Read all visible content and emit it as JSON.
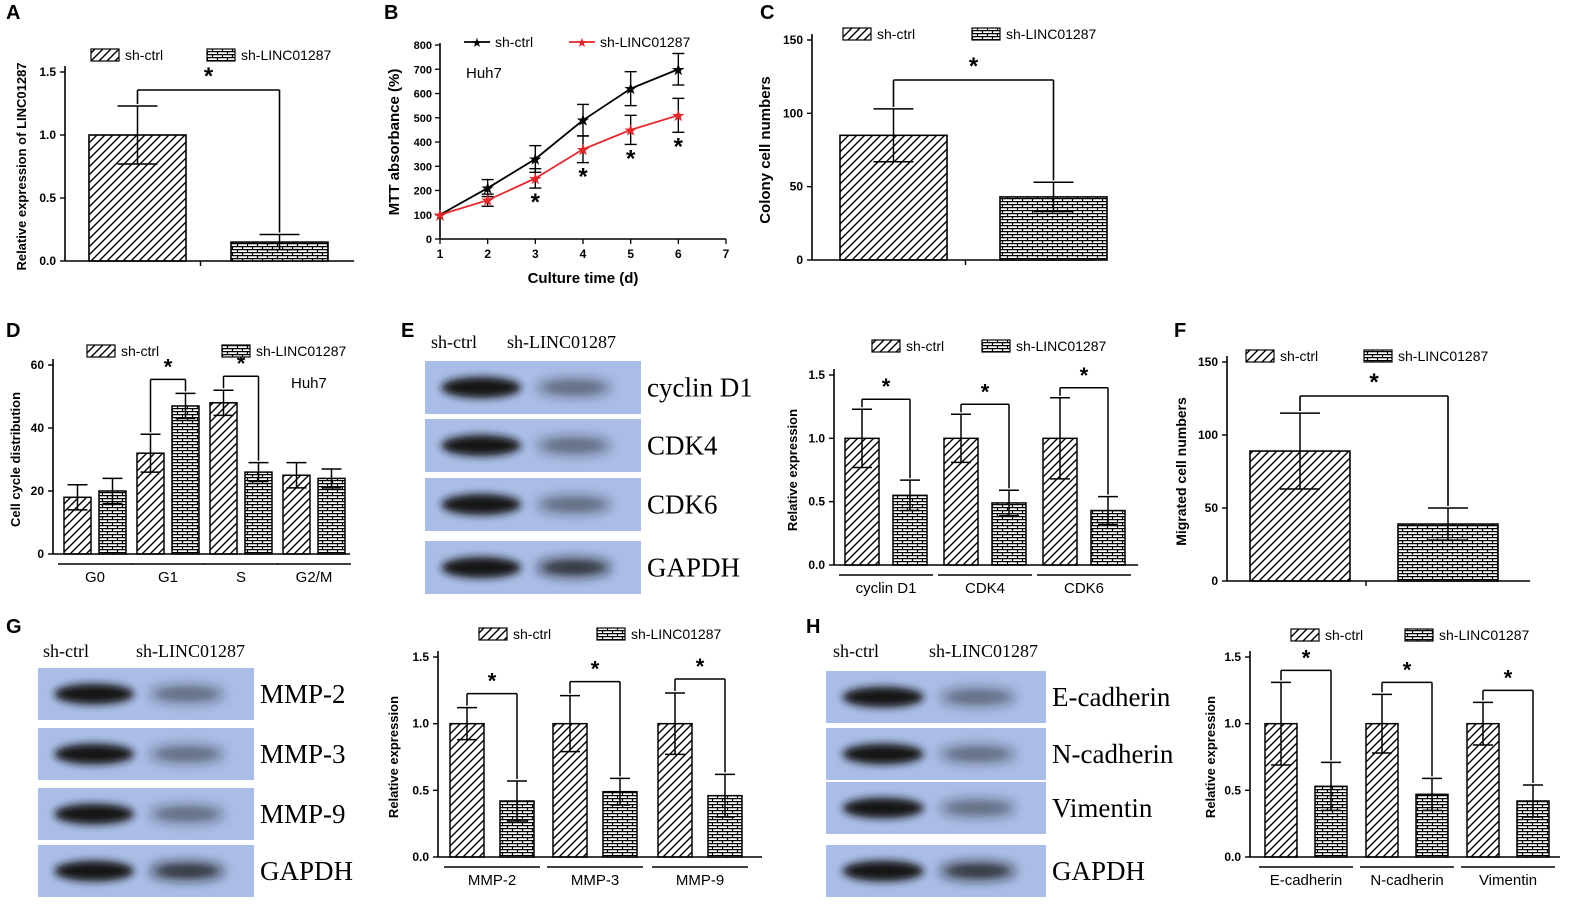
{
  "colors": {
    "ink": "#000000",
    "mtt_ctrl": "#000000",
    "mtt_sh": "#e8262a",
    "blot_bg": "#a9bde6",
    "blot_band": "#141414"
  },
  "legend_names": [
    "sh-ctrl",
    "sh-LINC01287"
  ],
  "panels": [
    {
      "letter": "A",
      "type": "bar",
      "significance": "*",
      "ylabel": "Relative expression of LINC01287",
      "yticks": [
        "0.0",
        "0.5",
        "1.0",
        "1.5"
      ],
      "ylim": [
        0,
        1.5
      ]
    },
    {
      "letter": "B",
      "type": "line",
      "annotation": "Huh7",
      "ylabel": "MTT absorbance (%)",
      "xlabel": "Culture time (d)",
      "yticks": [
        "0",
        "100",
        "200",
        "300",
        "400",
        "500",
        "600",
        "700",
        "800"
      ],
      "xticks": [
        "1",
        "2",
        "3",
        "4",
        "5",
        "6",
        "7"
      ]
    },
    {
      "letter": "C",
      "type": "bar",
      "significance": "*",
      "ylabel": "Colony cell numbers",
      "yticks": [
        "0",
        "50",
        "100",
        "150"
      ],
      "ylim": [
        0,
        150
      ]
    },
    {
      "letter": "D",
      "type": "bar",
      "annotation": "Huh7",
      "significance": "*",
      "ylabel": "Cell cycle distribution",
      "yticks": [
        "0",
        "20",
        "40",
        "60"
      ],
      "ylim": [
        0,
        60
      ],
      "categories": [
        "G0",
        "G1",
        "S",
        "G2/M"
      ]
    },
    {
      "letter": "E",
      "type": "bar",
      "significance": "*",
      "ylabel": "Relative expression",
      "yticks": [
        "0.0",
        "0.5",
        "1.0",
        "1.5"
      ],
      "ylim": [
        0,
        1.5
      ],
      "categories": [
        "cyclin D1",
        "CDK4",
        "CDK6"
      ],
      "blot_lanes": [
        "sh-ctrl",
        "sh-LINC01287"
      ],
      "blot_rows": [
        "cyclin D1",
        "CDK4",
        "CDK6",
        "GAPDH"
      ]
    },
    {
      "letter": "F",
      "type": "bar",
      "significance": "*",
      "ylabel": "Migrated cell numbers",
      "yticks": [
        "0",
        "50",
        "100",
        "150"
      ],
      "ylim": [
        0,
        150
      ]
    },
    {
      "letter": "G",
      "type": "bar",
      "significance": "*",
      "ylabel": "Relative expression",
      "yticks": [
        "0.0",
        "0.5",
        "1.0",
        "1.5"
      ],
      "ylim": [
        0,
        1.5
      ],
      "categories": [
        "MMP-2",
        "MMP-3",
        "MMP-9"
      ],
      "blot_lanes": [
        "sh-ctrl",
        "sh-LINC01287"
      ],
      "blot_rows": [
        "MMP-2",
        "MMP-3",
        "MMP-9",
        "GAPDH"
      ]
    },
    {
      "letter": "H",
      "type": "bar",
      "significance": "*",
      "ylabel": "Relative expression",
      "yticks": [
        "0.0",
        "0.5",
        "1.0",
        "1.5"
      ],
      "ylim": [
        0,
        1.5
      ],
      "categories": [
        "E-cadherin",
        "N-cadherin",
        "Vimentin"
      ],
      "blot_lanes": [
        "sh-ctrl",
        "sh-LINC01287"
      ],
      "blot_rows": [
        "E-cadherin",
        "N-cadherin",
        "Vimentin",
        "GAPDH"
      ]
    }
  ],
  "chart_data": [
    {
      "panel": "A",
      "type": "bar",
      "ylabel": "Relative expression of LINC01287",
      "ylim": [
        0,
        1.5
      ],
      "series": [
        {
          "name": "sh-ctrl",
          "values": [
            1.0
          ],
          "errors": [
            0.23
          ]
        },
        {
          "name": "sh-LINC01287",
          "values": [
            0.15
          ],
          "errors": [
            0.06
          ]
        }
      ]
    },
    {
      "panel": "B",
      "type": "line",
      "xlabel": "Culture time (d)",
      "ylabel": "MTT absorbance (%)",
      "xlim": [
        1,
        7
      ],
      "ylim": [
        0,
        800
      ],
      "x": [
        1,
        2,
        3,
        4,
        5,
        6
      ],
      "series": [
        {
          "name": "sh-ctrl",
          "values": [
            100,
            210,
            330,
            490,
            620,
            700
          ],
          "errors": [
            0,
            35,
            55,
            65,
            70,
            65
          ]
        },
        {
          "name": "sh-LINC01287",
          "values": [
            100,
            160,
            250,
            370,
            450,
            510
          ],
          "errors": [
            0,
            25,
            40,
            55,
            60,
            70
          ]
        }
      ]
    },
    {
      "panel": "C",
      "type": "bar",
      "ylabel": "Colony cell numbers",
      "ylim": [
        0,
        150
      ],
      "series": [
        {
          "name": "sh-ctrl",
          "values": [
            85
          ],
          "errors": [
            18
          ]
        },
        {
          "name": "sh-LINC01287",
          "values": [
            43
          ],
          "errors": [
            10
          ]
        }
      ]
    },
    {
      "panel": "D",
      "type": "bar",
      "ylabel": "Cell cycle distribution",
      "ylim": [
        0,
        60
      ],
      "categories": [
        "G0",
        "G1",
        "S",
        "G2/M"
      ],
      "series": [
        {
          "name": "sh-ctrl",
          "values": [
            18,
            32,
            48,
            25
          ],
          "errors": [
            4,
            6,
            4,
            4
          ]
        },
        {
          "name": "sh-LINC01287",
          "values": [
            20,
            47,
            26,
            24
          ],
          "errors": [
            4,
            4,
            3,
            3
          ]
        }
      ]
    },
    {
      "panel": "E",
      "type": "bar",
      "ylabel": "Relative expression",
      "ylim": [
        0,
        1.5
      ],
      "categories": [
        "cyclin D1",
        "CDK4",
        "CDK6"
      ],
      "series": [
        {
          "name": "sh-ctrl",
          "values": [
            1.0,
            1.0,
            1.0
          ],
          "errors": [
            0.23,
            0.19,
            0.32
          ]
        },
        {
          "name": "sh-LINC01287",
          "values": [
            0.55,
            0.49,
            0.43
          ],
          "errors": [
            0.12,
            0.1,
            0.11
          ]
        }
      ]
    },
    {
      "panel": "F",
      "type": "bar",
      "ylabel": "Migrated cell numbers",
      "ylim": [
        0,
        150
      ],
      "series": [
        {
          "name": "sh-ctrl",
          "values": [
            89
          ],
          "errors": [
            26
          ]
        },
        {
          "name": "sh-LINC01287",
          "values": [
            39
          ],
          "errors": [
            11
          ]
        }
      ]
    },
    {
      "panel": "G",
      "type": "bar",
      "ylabel": "Relative expression",
      "ylim": [
        0,
        1.5
      ],
      "categories": [
        "MMP-2",
        "MMP-3",
        "MMP-9"
      ],
      "series": [
        {
          "name": "sh-ctrl",
          "values": [
            1.0,
            1.0,
            1.0
          ],
          "errors": [
            0.12,
            0.21,
            0.23
          ]
        },
        {
          "name": "sh-LINC01287",
          "values": [
            0.42,
            0.49,
            0.46
          ],
          "errors": [
            0.15,
            0.1,
            0.16
          ]
        }
      ]
    },
    {
      "panel": "H",
      "type": "bar",
      "ylabel": "Relative expression",
      "ylim": [
        0,
        1.5
      ],
      "categories": [
        "E-cadherin",
        "N-cadherin",
        "Vimentin"
      ],
      "series": [
        {
          "name": "sh-ctrl",
          "values": [
            1.0,
            1.0,
            1.0
          ],
          "errors": [
            0.31,
            0.22,
            0.16
          ]
        },
        {
          "name": "sh-LINC01287",
          "values": [
            0.53,
            0.47,
            0.42
          ],
          "errors": [
            0.18,
            0.12,
            0.12
          ]
        }
      ]
    }
  ]
}
